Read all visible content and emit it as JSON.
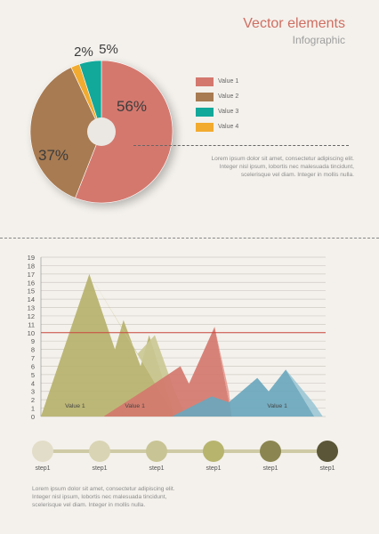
{
  "header": {
    "title": "Vector elements",
    "subtitle": "Infographic"
  },
  "legend": [
    {
      "label": "Value 1",
      "color": "#d4786e"
    },
    {
      "label": "Value 2",
      "color": "#a87b52"
    },
    {
      "label": "Value 3",
      "color": "#12a89a"
    },
    {
      "label": "Value 4",
      "color": "#f2ab2f"
    }
  ],
  "description_top": [
    "Lorem ipsum dolor sit amet, consectetur adipiscing elit.",
    "Integer nisl ipsum, lobortis nec malesuada tincidunt,",
    "scelerisque vel diam. Integer in mollis nulla."
  ],
  "description_bottom": [
    "Lorem ipsum dolor sit amet, consectetur adipiscing elit.",
    "Integer nisl ipsum, lobortis nec malesuada tincidunt,",
    "scelerisque vel diam. Integer in mollis nulla."
  ],
  "steps": {
    "labels": [
      "step1",
      "step1",
      "step1",
      "step1",
      "step1",
      "step1"
    ],
    "colors": [
      "#e2ddc8",
      "#d9d4b4",
      "#c8c495",
      "#b7b46e",
      "#8b8651",
      "#5a5637"
    ]
  },
  "chart_data": [
    {
      "type": "pie",
      "slices": [
        {
          "label": "Value 1",
          "value": 56,
          "display": "56%",
          "color": "#d4786e"
        },
        {
          "label": "Value 2",
          "value": 37,
          "display": "37%",
          "color": "#a87b52"
        },
        {
          "label": "Value 4",
          "value": 2,
          "display": "2%",
          "color": "#f2ab2f"
        },
        {
          "label": "Value 3",
          "value": 5,
          "display": "5%",
          "color": "#12a89a"
        }
      ]
    },
    {
      "type": "area",
      "ylim": [
        0,
        19
      ],
      "yticks": [
        "0",
        "1",
        "2",
        "3",
        "4",
        "5",
        "6",
        "7",
        "8",
        "9",
        "10",
        "11",
        "12",
        "13",
        "14",
        "15",
        "16",
        "17",
        "18",
        "19"
      ],
      "xlim": [
        0,
        100
      ],
      "reference_line": 10,
      "series": [
        {
          "label": "Value 1",
          "color": "#b6b26c",
          "shadow": "#cbc893",
          "points": [
            [
              0,
              0
            ],
            [
              17,
              17
            ],
            [
              26,
              8
            ],
            [
              29,
              11.5
            ],
            [
              35,
              6
            ],
            [
              38,
              9.7
            ],
            [
              47,
              0
            ]
          ],
          "shadow_points": [
            [
              17,
              17
            ],
            [
              34,
              7.5
            ],
            [
              40,
              9.7
            ],
            [
              47,
              3
            ],
            [
              51,
              0
            ],
            [
              47,
              0
            ]
          ]
        },
        {
          "label": "Value 1",
          "color": "#d4786e",
          "shadow": "#e59a90",
          "points": [
            [
              22,
              0
            ],
            [
              38,
              3.5
            ],
            [
              49,
              6
            ],
            [
              52,
              3.9
            ],
            [
              61,
              10.7
            ],
            [
              67,
              0
            ]
          ],
          "shadow_points": [
            [
              61,
              10.7
            ],
            [
              66,
              3
            ],
            [
              67,
              0
            ]
          ]
        },
        {
          "label": "Value 1",
          "color": "#6aa7bd",
          "shadow": "#9bc7d5",
          "points": [
            [
              46,
              0
            ],
            [
              60,
              2.4
            ],
            [
              66,
              1.7
            ],
            [
              76,
              4.6
            ],
            [
              80,
              3
            ],
            [
              86,
              5.6
            ],
            [
              96,
              0
            ]
          ],
          "shadow_points": [
            [
              86,
              5.6
            ],
            [
              96,
              1.5
            ],
            [
              99,
              0
            ],
            [
              96,
              0
            ]
          ]
        }
      ],
      "series_labels": [
        {
          "text": "Value 1",
          "x": 12
        },
        {
          "text": "Value 1",
          "x": 33
        },
        {
          "text": "Value 1",
          "x": 83
        }
      ]
    }
  ]
}
